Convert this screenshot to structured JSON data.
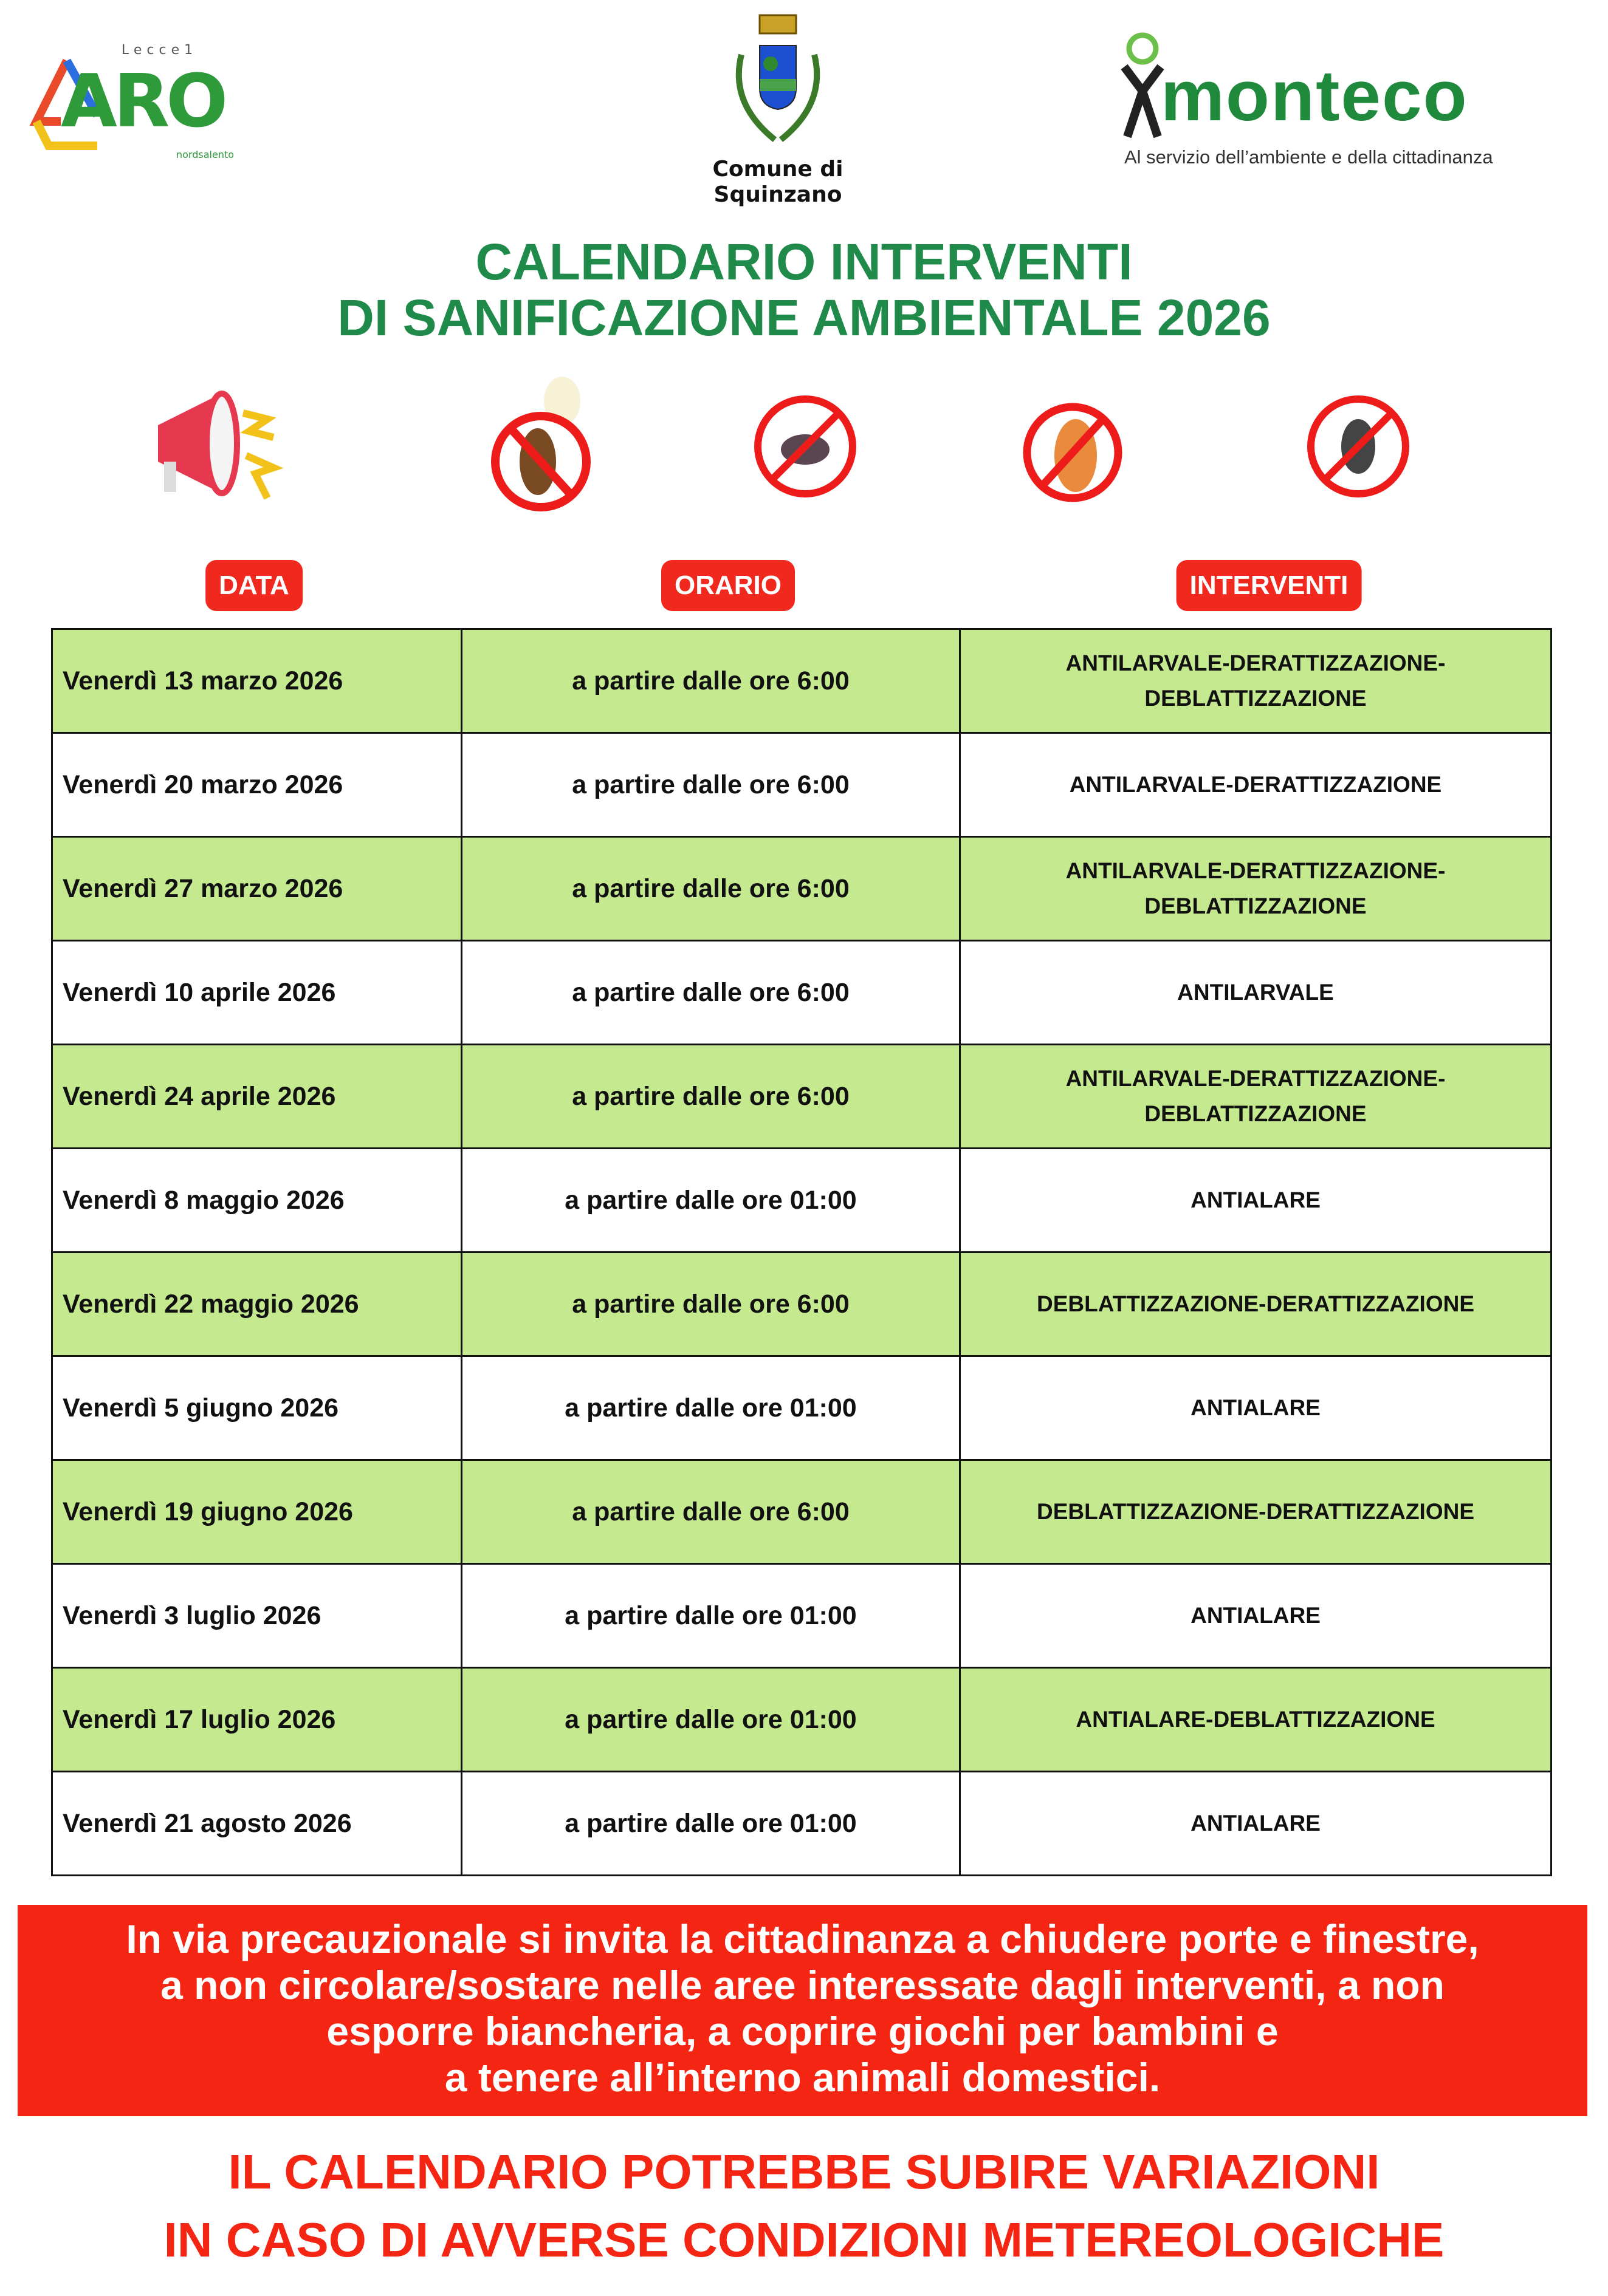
{
  "header": {
    "logo_left": {
      "main": "ARO",
      "top": "Lecce1",
      "sub": "nordsalento"
    },
    "crest_caption": [
      "Comune di",
      "Squinzano"
    ],
    "logo_right": {
      "name": "monteco",
      "tagline": "Al servizio dell’ambiente e della cittadinanza"
    }
  },
  "title": [
    "CALENDARIO INTERVENTI",
    "DI SANIFICAZIONE AMBIENTALE 2026"
  ],
  "icons": [
    "megaphone-icon",
    "no-mosquito-icon",
    "no-rat-icon",
    "no-cockroach-icon",
    "no-fly-icon"
  ],
  "colors": {
    "green_title": "#1f8a4a",
    "row_green": "#c5e98f",
    "red": "#f52513"
  },
  "table": {
    "headers": [
      "DATA",
      "ORARIO",
      "INTERVENTI"
    ],
    "rows": [
      {
        "data": "Venerdì 13 marzo 2026",
        "orario": "a partire dalle ore 6:00",
        "interventi": "ANTILARVALE-DERATTIZZAZIONE-DEBLATTIZZAZIONE"
      },
      {
        "data": "Venerdì 20 marzo 2026",
        "orario": "a partire dalle ore 6:00",
        "interventi": "ANTILARVALE-DERATTIZZAZIONE"
      },
      {
        "data": "Venerdì 27 marzo 2026",
        "orario": "a partire dalle ore 6:00",
        "interventi": "ANTILARVALE-DERATTIZZAZIONE-DEBLATTIZZAZIONE"
      },
      {
        "data": "Venerdì 10 aprile 2026",
        "orario": "a partire dalle ore 6:00",
        "interventi": "ANTILARVALE"
      },
      {
        "data": "Venerdì 24 aprile 2026",
        "orario": "a partire dalle ore 6:00",
        "interventi": "ANTILARVALE-DERATTIZZAZIONE-DEBLATTIZZAZIONE"
      },
      {
        "data": "Venerdì 8 maggio 2026",
        "orario": "a partire dalle ore 01:00",
        "interventi": "ANTIALARE"
      },
      {
        "data": "Venerdì 22 maggio 2026",
        "orario": "a partire dalle ore 6:00",
        "interventi": "DEBLATTIZZAZIONE-DERATTIZZAZIONE"
      },
      {
        "data": "Venerdì 5 giugno 2026",
        "orario": "a partire dalle ore 01:00",
        "interventi": "ANTIALARE"
      },
      {
        "data": "Venerdì 19 giugno 2026",
        "orario": "a partire dalle ore 6:00",
        "interventi": "DEBLATTIZZAZIONE-DERATTIZZAZIONE"
      },
      {
        "data": "Venerdì 3 luglio 2026",
        "orario": "a partire dalle ore 01:00",
        "interventi": "ANTIALARE"
      },
      {
        "data": "Venerdì 17 luglio 2026",
        "orario": "a partire dalle ore 01:00",
        "interventi": "ANTIALARE-DEBLATTIZZAZIONE"
      },
      {
        "data": "Venerdì 21 agosto 2026",
        "orario": "a partire dalle ore 01:00",
        "interventi": "ANTIALARE"
      }
    ]
  },
  "notice": [
    "In via precauzionale si invita la cittadinanza a chiudere porte e finestre,",
    "a non circolare/sostare nelle aree interessate dagli interventi, a non",
    "esporre biancheria, a coprire giochi per bambini e",
    "a tenere all’interno animali domestici."
  ],
  "warning": [
    "IL CALENDARIO POTREBBE SUBIRE VARIAZIONI",
    "IN CASO DI AVVERSE CONDIZIONI METEREOLOGICHE"
  ]
}
